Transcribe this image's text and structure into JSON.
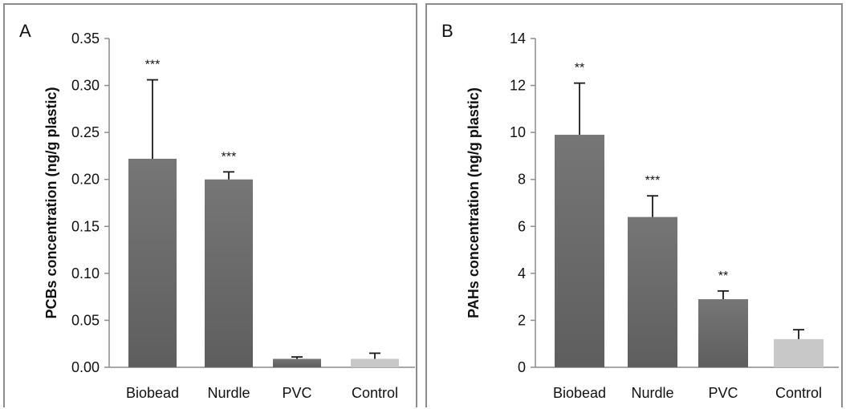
{
  "colors": {
    "bar_dark": "#5e5e5e",
    "bar_dark_top": "#767676",
    "bar_light": "#c8c8c8",
    "axis": "#8c8c8c",
    "errorbar": "#1a1a1a"
  },
  "chart_data": [
    {
      "type": "bar",
      "panel_label": "A",
      "title": "",
      "xlabel": "",
      "ylabel": "PCBs concentration (ng/g plastic)",
      "categories": [
        "Biobead",
        "Nurdle",
        "PVC",
        "Control"
      ],
      "values": [
        0.222,
        0.2,
        0.009,
        0.009
      ],
      "error_upper": [
        0.306,
        0.208,
        0.011,
        0.015
      ],
      "significance": [
        "***",
        "***",
        "",
        ""
      ],
      "bar_colors": [
        "dark",
        "dark",
        "dark",
        "light"
      ],
      "ylim": [
        0,
        0.35
      ],
      "yticks": [
        "0.00",
        "0.05",
        "0.10",
        "0.15",
        "0.20",
        "0.25",
        "0.30",
        "0.35"
      ],
      "grid": false,
      "legend": "none"
    },
    {
      "type": "bar",
      "panel_label": "B",
      "title": "",
      "xlabel": "",
      "ylabel": "PAHs concentration (ng/g plastic)",
      "categories": [
        "Biobead",
        "Nurdle",
        "PVC",
        "Control"
      ],
      "values": [
        9.9,
        6.4,
        2.9,
        1.2
      ],
      "error_upper": [
        12.1,
        7.3,
        3.25,
        1.6
      ],
      "significance": [
        "**",
        "***",
        "**",
        ""
      ],
      "bar_colors": [
        "dark",
        "dark",
        "dark",
        "light"
      ],
      "ylim": [
        0,
        14
      ],
      "yticks": [
        "0",
        "2",
        "4",
        "6",
        "8",
        "10",
        "12",
        "14"
      ],
      "grid": false,
      "legend": "none"
    }
  ]
}
